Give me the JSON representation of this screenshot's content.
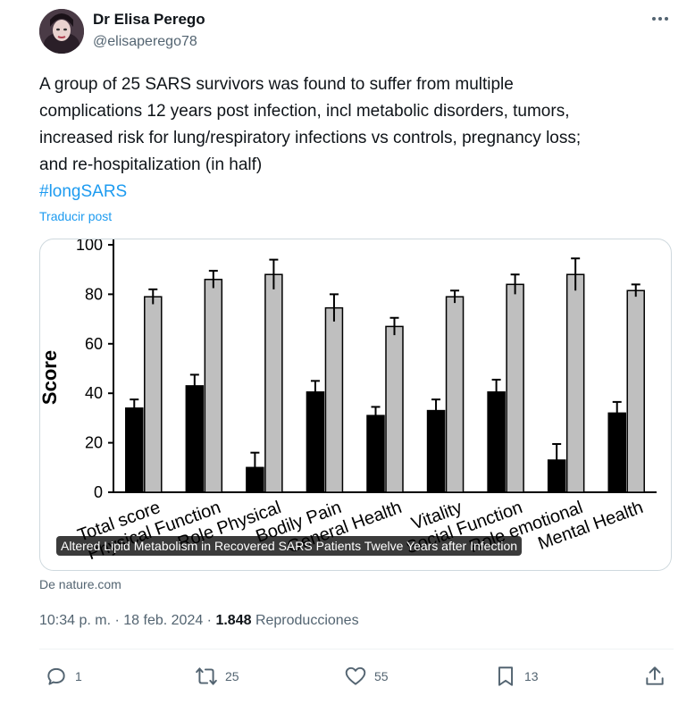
{
  "author": {
    "name": "Dr Elisa Perego",
    "handle": "@elisaperego78",
    "avatar_icon": "avatar-photo"
  },
  "menu_icon": "more-horizontal-icon",
  "tweet": {
    "text": "A group of 25 SARS survivors was found to suffer from multiple\ncomplications 12 years post infection, incl metabolic disorders, tumors,\nincreased risk for lung/respiratory infections vs controls, pregnancy loss;\nand re-hospitalization (in half)",
    "hashtag": "#longSARS",
    "translate_label": "Traducir post"
  },
  "card": {
    "caption": "Altered Lipid Metabolism in Recovered SARS Patients Twelve Years after Infection",
    "source": "De nature.com"
  },
  "meta": {
    "time": "10:34 p. m.",
    "separator": " · ",
    "date": "18 feb. 2024",
    "views_count": "1.848",
    "views_label": "Reproducciones"
  },
  "actions": {
    "reply": {
      "icon": "reply-icon",
      "count": "1"
    },
    "repost": {
      "icon": "repost-icon",
      "count": "25"
    },
    "like": {
      "icon": "heart-icon",
      "count": "55"
    },
    "bookmark": {
      "icon": "bookmark-icon",
      "count": "13"
    },
    "share": {
      "icon": "share-icon"
    }
  },
  "chart_data": {
    "type": "bar",
    "ylabel": "Score",
    "ylim": [
      0,
      100
    ],
    "yticks": [
      0,
      20,
      40,
      60,
      80,
      100
    ],
    "categories": [
      "Total score",
      "Physical Function",
      "Role Physical",
      "Bodily Pain",
      "General Health",
      "Vitality",
      "Social Function",
      "Role emotional",
      "Mental Health"
    ],
    "series": [
      {
        "values": [
          34,
          43,
          10,
          40.5,
          31,
          33,
          40.5,
          13,
          32
        ],
        "errors": [
          3.5,
          4.5,
          6,
          4.5,
          3.5,
          4.5,
          5,
          6.5,
          4.5
        ],
        "color": "#000000"
      },
      {
        "values": [
          79,
          86,
          88,
          74.5,
          67,
          79,
          84,
          88,
          81.5
        ],
        "errors": [
          3,
          3.5,
          6,
          5.5,
          3.5,
          2.5,
          4,
          6.5,
          2.5
        ],
        "color": "#bfbfbf"
      }
    ]
  }
}
